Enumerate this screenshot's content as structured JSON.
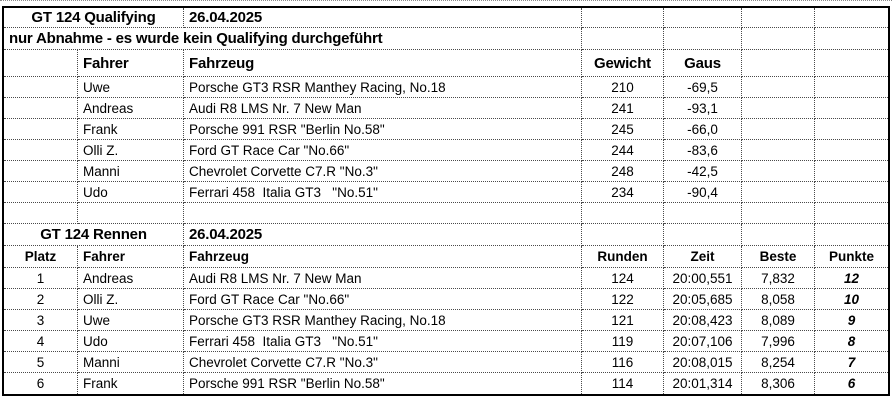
{
  "qualifying": {
    "title": "GT 124 Qualifying",
    "date": "26.04.2025",
    "note": "nur Abnahme - es wurde kein Qualifying durchgeführt",
    "headers": {
      "fahrer": "Fahrer",
      "fahrzeug": "Fahrzeug",
      "gewicht": "Gewicht",
      "gaus": "Gaus"
    },
    "rows": [
      {
        "fahrer": "Uwe",
        "fahrzeug": "Porsche GT3 RSR Manthey Racing, No.18",
        "gewicht": "210",
        "gaus": "-69,5"
      },
      {
        "fahrer": "Andreas",
        "fahrzeug": "Audi R8 LMS Nr. 7 New Man",
        "gewicht": "241",
        "gaus": "-93,1"
      },
      {
        "fahrer": "Frank",
        "fahrzeug": "Porsche 991 RSR \"Berlin No.58\"",
        "gewicht": "245",
        "gaus": "-66,0"
      },
      {
        "fahrer": "Olli Z.",
        "fahrzeug": "Ford GT Race Car \"No.66\"",
        "gewicht": "244",
        "gaus": "-83,6"
      },
      {
        "fahrer": "Manni",
        "fahrzeug": "Chevrolet Corvette C7.R \"No.3\"",
        "gewicht": "248",
        "gaus": "-42,5"
      },
      {
        "fahrer": "Udo",
        "fahrzeug": "Ferrari 458  Italia GT3   \"No.51\"",
        "gewicht": "234",
        "gaus": "-90,4"
      }
    ]
  },
  "race": {
    "title": "GT 124 Rennen",
    "date": "26.04.2025",
    "headers": {
      "platz": "Platz",
      "fahrer": "Fahrer",
      "fahrzeug": "Fahrzeug",
      "runden": "Runden",
      "zeit": "Zeit",
      "beste": "Beste",
      "punkte": "Punkte"
    },
    "rows": [
      {
        "platz": "1",
        "fahrer": "Andreas",
        "fahrzeug": "Audi R8 LMS Nr. 7 New Man",
        "runden": "124",
        "zeit": "20:00,551",
        "beste": "7,832",
        "punkte": "12"
      },
      {
        "platz": "2",
        "fahrer": "Olli Z.",
        "fahrzeug": "Ford GT Race Car \"No.66\"",
        "runden": "122",
        "zeit": "20:05,685",
        "beste": "8,058",
        "punkte": "10"
      },
      {
        "platz": "3",
        "fahrer": "Uwe",
        "fahrzeug": "Porsche GT3 RSR Manthey Racing, No.18",
        "runden": "121",
        "zeit": "20:08,423",
        "beste": "8,089",
        "punkte": "9"
      },
      {
        "platz": "4",
        "fahrer": "Udo",
        "fahrzeug": "Ferrari 458  Italia GT3   \"No.51\"",
        "runden": "119",
        "zeit": "20:07,106",
        "beste": "7,996",
        "punkte": "8"
      },
      {
        "platz": "5",
        "fahrer": "Manni",
        "fahrzeug": "Chevrolet Corvette C7.R \"No.3\"",
        "runden": "116",
        "zeit": "20:08,015",
        "beste": "8,254",
        "punkte": "7"
      },
      {
        "platz": "6",
        "fahrer": "Frank",
        "fahrzeug": "Porsche 991 RSR \"Berlin No.58\"",
        "runden": "114",
        "zeit": "20:01,314",
        "beste": "8,306",
        "punkte": "6"
      }
    ]
  },
  "colors": {
    "outer_border": "#000000",
    "gridline": "#4a4a4a",
    "text": "#000000",
    "background": "#ffffff"
  }
}
